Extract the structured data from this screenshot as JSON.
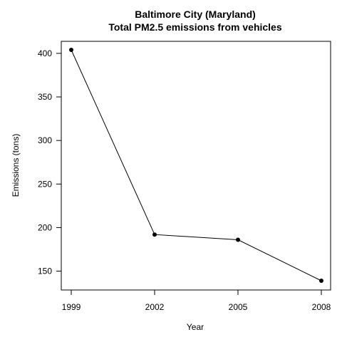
{
  "chart_data": {
    "type": "line",
    "title": "Baltimore City (Maryland)",
    "subtitle": "Total PM2.5 emissions from vehicles",
    "xlabel": "Year",
    "ylabel": "Emissions (tons)",
    "x": [
      1999,
      2002,
      2005,
      2008
    ],
    "values": [
      404,
      192,
      186,
      139
    ],
    "xlim": [
      1999,
      2008
    ],
    "ylim": [
      139,
      404
    ],
    "x_ticks": [
      1999,
      2002,
      2005,
      2008
    ],
    "y_ticks": [
      150,
      200,
      250,
      300,
      350,
      400
    ],
    "grid": false,
    "marker": "filled-circle",
    "line_color": "#000000",
    "point_color": "#000000"
  }
}
